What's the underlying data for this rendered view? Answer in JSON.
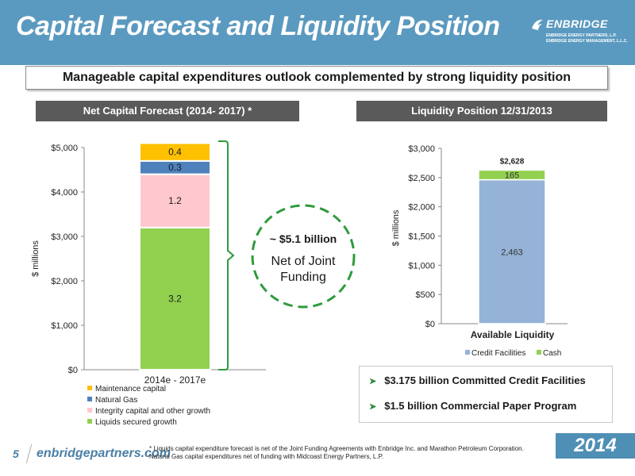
{
  "header": {
    "title": "Capital Forecast and Liquidity Position"
  },
  "logo": {
    "word": "ENBRIDGE",
    "line1": "ENBRIDGE ENERGY PARTNERS, L.P.",
    "line2": "ENBRIDGE ENERGY MANAGEMENT, L.L.C."
  },
  "subtitle": "Manageable capital expenditures outlook complemented by strong liquidity position",
  "left_panel_title": "Net Capital Forecast (2014- 2017) *",
  "right_panel_title": "Liquidity Position 12/31/2013",
  "callout": {
    "amount": "~ $5.1 billion",
    "line1": "Net of Joint",
    "line2": "Funding"
  },
  "bullets": [
    "$3.175 billion Committed Credit Facilities",
    "$1.5 billion Commercial Paper Program"
  ],
  "footer": {
    "page": "5",
    "site": "enbridgepartners.com",
    "note": "* Liquids capital expenditure forecast is net of the Joint Funding Agreements with Enbridge Inc. and  Marathon Petroleum Corporation.  Natural Gas capital expenditures net of funding with  Midcoast Energy Partners, L.P.",
    "year": "2014"
  },
  "colors": {
    "liquids": "#92d050",
    "integrity": "#ffc7ce",
    "gas": "#4f81bd",
    "maint": "#ffc000",
    "credit": "#95b3d7",
    "cash": "#92d050",
    "header": "#5b9ac0"
  },
  "chart_data": [
    {
      "type": "bar",
      "stacked": true,
      "categories": [
        "2014e - 2017e"
      ],
      "ylabel": "$ millions",
      "ylim": [
        0,
        5000
      ],
      "yticks": [
        0,
        1000,
        2000,
        3000,
        4000,
        5000
      ],
      "ytick_labels": [
        "$0",
        "$1,000",
        "$2,000",
        "$3,000",
        "$4,000",
        "$5,000"
      ],
      "series": [
        {
          "name": "Liquids secured growth",
          "values": [
            3200
          ],
          "label": "3.2",
          "color": "#92d050"
        },
        {
          "name": "Integrity capital and other growth",
          "values": [
            1200
          ],
          "label": "1.2",
          "color": "#ffc7ce"
        },
        {
          "name": "Natural Gas",
          "values": [
            300
          ],
          "label": "0.3",
          "color": "#4f81bd"
        },
        {
          "name": "Maintenance capital",
          "values": [
            400
          ],
          "label": "0.4",
          "color": "#ffc000"
        }
      ],
      "legend_order": [
        "Maintenance capital",
        "Natural Gas",
        "Integrity capital and other growth",
        "Liquids secured growth"
      ],
      "legend": "bottom"
    },
    {
      "type": "bar",
      "stacked": true,
      "categories": [
        "Available Liquidity"
      ],
      "ylabel": "$ millions",
      "ylim": [
        0,
        3000
      ],
      "yticks": [
        0,
        500,
        1000,
        1500,
        2000,
        2500,
        3000
      ],
      "ytick_labels": [
        "$0",
        "$500",
        "$1,000",
        "$1,500",
        "$2,000",
        "$2,500",
        "$3,000"
      ],
      "series": [
        {
          "name": "Credit Facilities",
          "values": [
            2463
          ],
          "label": "2,463",
          "color": "#95b3d7"
        },
        {
          "name": "Cash",
          "values": [
            165
          ],
          "label": "165",
          "color": "#92d050"
        }
      ],
      "total_label": "$2,628",
      "legend": "bottom"
    }
  ]
}
